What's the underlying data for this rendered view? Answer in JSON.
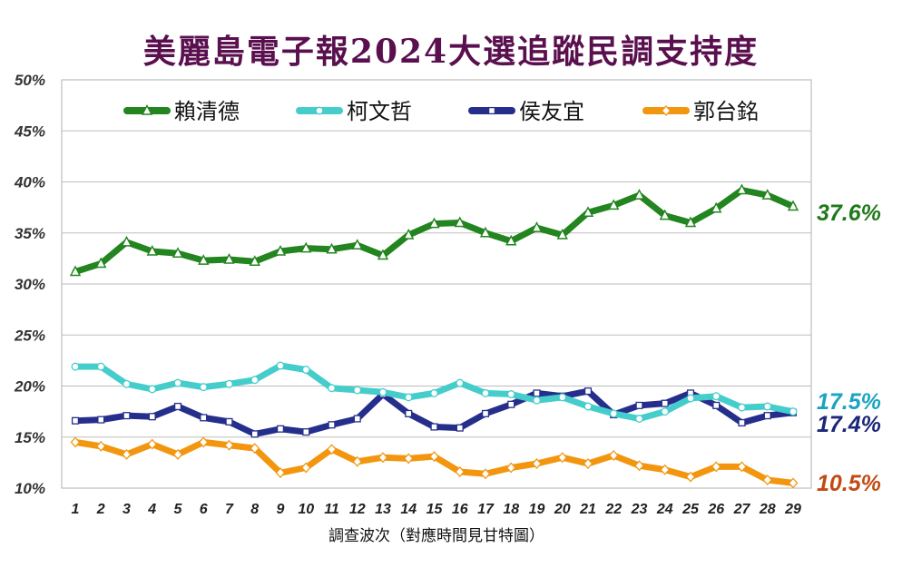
{
  "title": "美麗島電子報2024大選追蹤民調支持度",
  "chart_data": {
    "type": "line",
    "title": "美麗島電子報2024大選追蹤民調支持度",
    "xlabel": "調查波次（對應時間見甘特圖）",
    "ylabel": "",
    "x": [
      1,
      2,
      3,
      4,
      5,
      6,
      7,
      8,
      9,
      10,
      11,
      12,
      13,
      14,
      15,
      16,
      17,
      18,
      19,
      20,
      21,
      22,
      23,
      24,
      25,
      26,
      27,
      28,
      29
    ],
    "ylim": [
      10,
      50
    ],
    "yticks": [
      10,
      15,
      20,
      25,
      30,
      35,
      40,
      45,
      50
    ],
    "ytick_labels": [
      "10%",
      "15%",
      "20%",
      "25%",
      "30%",
      "35%",
      "40%",
      "45%",
      "50%"
    ],
    "grid": "horizontal",
    "legend_position": "top",
    "series": [
      {
        "name": "賴清德",
        "color": "#23851f",
        "marker": "triangle",
        "end_label": "37.6%",
        "end_label_color": "#1f7a1a",
        "values": [
          31.2,
          32.0,
          34.1,
          33.2,
          33.0,
          32.3,
          32.4,
          32.2,
          33.2,
          33.5,
          33.4,
          33.8,
          32.8,
          34.8,
          35.9,
          36.0,
          35.0,
          34.2,
          35.5,
          34.8,
          37.0,
          37.7,
          38.7,
          36.7,
          36.0,
          37.4,
          39.2,
          38.7,
          37.6
        ]
      },
      {
        "name": "柯文哲",
        "color": "#45cdcc",
        "marker": "circle",
        "end_label": "17.5%",
        "end_label_color": "#1ba3c2",
        "values": [
          21.9,
          21.9,
          20.2,
          19.7,
          20.3,
          19.9,
          20.2,
          20.6,
          22.0,
          21.6,
          19.8,
          19.6,
          19.4,
          18.9,
          19.3,
          20.3,
          19.3,
          19.2,
          18.6,
          18.9,
          18.0,
          17.3,
          16.8,
          17.5,
          18.8,
          19.0,
          17.9,
          18.0,
          17.5
        ]
      },
      {
        "name": "侯友宜",
        "color": "#262e8c",
        "marker": "square",
        "end_label": "17.4%",
        "end_label_color": "#1c2779",
        "values": [
          16.6,
          16.7,
          17.1,
          17.0,
          18.0,
          16.9,
          16.5,
          15.3,
          15.8,
          15.5,
          16.2,
          16.8,
          19.2,
          17.3,
          16.0,
          15.9,
          17.3,
          18.2,
          19.3,
          19.0,
          19.5,
          17.2,
          18.1,
          18.3,
          19.3,
          18.1,
          16.4,
          17.1,
          17.4
        ]
      },
      {
        "name": "郭台銘",
        "color": "#f2960f",
        "marker": "diamond",
        "end_label": "10.5%",
        "end_label_color": "#c24a12",
        "values": [
          14.5,
          14.1,
          13.3,
          14.3,
          13.3,
          14.5,
          14.2,
          13.9,
          11.5,
          12.0,
          13.8,
          12.6,
          13.0,
          12.9,
          13.1,
          11.6,
          11.4,
          12.0,
          12.4,
          13.0,
          12.4,
          13.2,
          12.2,
          11.8,
          11.1,
          12.1,
          12.1,
          10.8,
          10.5
        ]
      }
    ]
  }
}
